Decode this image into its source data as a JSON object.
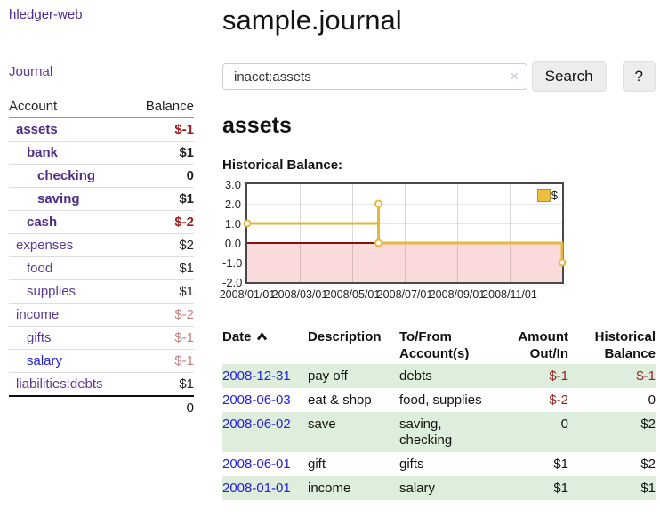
{
  "colors": {
    "purple": "#5c3a92",
    "purple_dark": "#4f2d87",
    "brand_purple": "#4b2a9b",
    "link_blue": "#2323d8",
    "negative_dark": "#9b1c1c",
    "negative_soft": "#c47e7e",
    "row_green": "#ddeedd",
    "chart_gold": "#e6b73d",
    "chart_negative_bg": "#fadada",
    "zero_line": "#8a0f0f",
    "grid_gray": "#d9d9d9"
  },
  "sidebar": {
    "brand": "hledger-web",
    "journal_label": "Journal",
    "table": {
      "col_account": "Account",
      "col_balance": "Balance"
    },
    "accounts": [
      {
        "name": "assets",
        "indent": 1,
        "bold": true,
        "link_color": "purple",
        "balance": "$-1",
        "balance_color": "dark-red"
      },
      {
        "name": "bank",
        "indent": 2,
        "bold": true,
        "link_color": "purple",
        "balance": "$1",
        "balance_color": "black"
      },
      {
        "name": "checking",
        "indent": 3,
        "bold": true,
        "link_color": "purple",
        "balance": "0",
        "balance_color": "black"
      },
      {
        "name": "saving",
        "indent": 3,
        "bold": true,
        "link_color": "purple",
        "balance": "$1",
        "balance_color": "black"
      },
      {
        "name": "cash",
        "indent": 2,
        "bold": true,
        "link_color": "purple",
        "balance": "$-2",
        "balance_color": "dark-red"
      },
      {
        "name": "expenses",
        "indent": 1,
        "bold": false,
        "link_color": "purple",
        "balance": "$2",
        "balance_color": "black"
      },
      {
        "name": "food",
        "indent": 2,
        "bold": false,
        "link_color": "purple",
        "balance": "$1",
        "balance_color": "black"
      },
      {
        "name": "supplies",
        "indent": 2,
        "bold": false,
        "link_color": "purple",
        "balance": "$1",
        "balance_color": "black"
      },
      {
        "name": "income",
        "indent": 1,
        "bold": false,
        "link_color": "purple",
        "balance": "$-2",
        "balance_color": "rose"
      },
      {
        "name": "gifts",
        "indent": 2,
        "bold": false,
        "link_color": "purple",
        "balance": "$-1",
        "balance_color": "rose"
      },
      {
        "name": "salary",
        "indent": 2,
        "bold": false,
        "link_color": "blue",
        "balance": "$-1",
        "balance_color": "rose"
      },
      {
        "name": "liabilities:debts",
        "indent": 1,
        "bold": false,
        "link_color": "purple",
        "balance": "$1",
        "balance_color": "black"
      }
    ],
    "total": "0"
  },
  "main": {
    "title": "sample.journal",
    "search": {
      "value": "inacct:assets",
      "clear_icon": "×",
      "button_label": "Search",
      "help_label": "?"
    },
    "account_heading": "assets"
  },
  "chart_data": {
    "type": "line",
    "title": "Historical Balance:",
    "legend": {
      "label": "$",
      "swatch_color": "#ecbe3e",
      "position": "top-right"
    },
    "x_range_months": [
      0,
      12
    ],
    "x_ticks": [
      {
        "m": 0,
        "label": "2008/01/01"
      },
      {
        "m": 2,
        "label": "2008/03/01"
      },
      {
        "m": 4,
        "label": "2008/05/01"
      },
      {
        "m": 6,
        "label": "2008/07/01"
      },
      {
        "m": 8,
        "label": "2008/09/01"
      },
      {
        "m": 10,
        "label": "2008/11/01"
      }
    ],
    "y_ticks": [
      {
        "v": 3,
        "label": "3.0"
      },
      {
        "v": 2,
        "label": "2.0"
      },
      {
        "v": 1,
        "label": "1.0"
      },
      {
        "v": 0,
        "label": "0.0"
      },
      {
        "v": -1,
        "label": "-1.0"
      },
      {
        "v": -2,
        "label": "-2.0"
      }
    ],
    "y_range": [
      -2,
      3
    ],
    "grid": true,
    "series": [
      {
        "name": "$",
        "color": "#e6b73d",
        "step_path_points": [
          [
            0,
            1
          ],
          [
            5,
            1
          ],
          [
            5,
            2
          ],
          [
            5,
            0
          ],
          [
            12,
            0
          ],
          [
            12,
            -1
          ]
        ],
        "markers": [
          [
            0,
            1
          ],
          [
            5,
            2
          ],
          [
            5,
            0
          ],
          [
            12,
            -1
          ]
        ],
        "data_by_date": [
          {
            "date": "2008-01-01",
            "balance": 1
          },
          {
            "date": "2008-06-01",
            "balance": 2
          },
          {
            "date": "2008-06-03",
            "balance": 0
          },
          {
            "date": "2008-12-31",
            "balance": -1
          }
        ]
      }
    ],
    "negative_region": {
      "from": -2,
      "to": 0,
      "fill": "#fadada"
    },
    "zero_line_color": "#8a0f0f"
  },
  "register": {
    "headers": {
      "date": "Date",
      "description": "Description",
      "accounts_line1": "To/From",
      "accounts_line2": "Account(s)",
      "amount_line1": "Amount",
      "amount_line2": "Out/In",
      "balance_line1": "Historical",
      "balance_line2": "Balance"
    },
    "rows": [
      {
        "date": "2008-12-31",
        "description": "pay off",
        "accounts": "debts",
        "amount": "$-1",
        "amount_neg": true,
        "balance": "$-1",
        "balance_neg": true,
        "shaded": true
      },
      {
        "date": "2008-06-03",
        "description": "eat & shop",
        "accounts": "food, supplies",
        "amount": "$-2",
        "amount_neg": true,
        "balance": "0",
        "balance_neg": false,
        "shaded": false
      },
      {
        "date": "2008-06-02",
        "description": "save",
        "accounts": "saving,\nchecking",
        "amount": "0",
        "amount_neg": false,
        "balance": "$2",
        "balance_neg": false,
        "shaded": true
      },
      {
        "date": "2008-06-01",
        "description": "gift",
        "accounts": "gifts",
        "amount": "$1",
        "amount_neg": false,
        "balance": "$2",
        "balance_neg": false,
        "shaded": false
      },
      {
        "date": "2008-01-01",
        "description": "income",
        "accounts": "salary",
        "amount": "$1",
        "amount_neg": false,
        "balance": "$1",
        "balance_neg": false,
        "shaded": true
      }
    ]
  }
}
